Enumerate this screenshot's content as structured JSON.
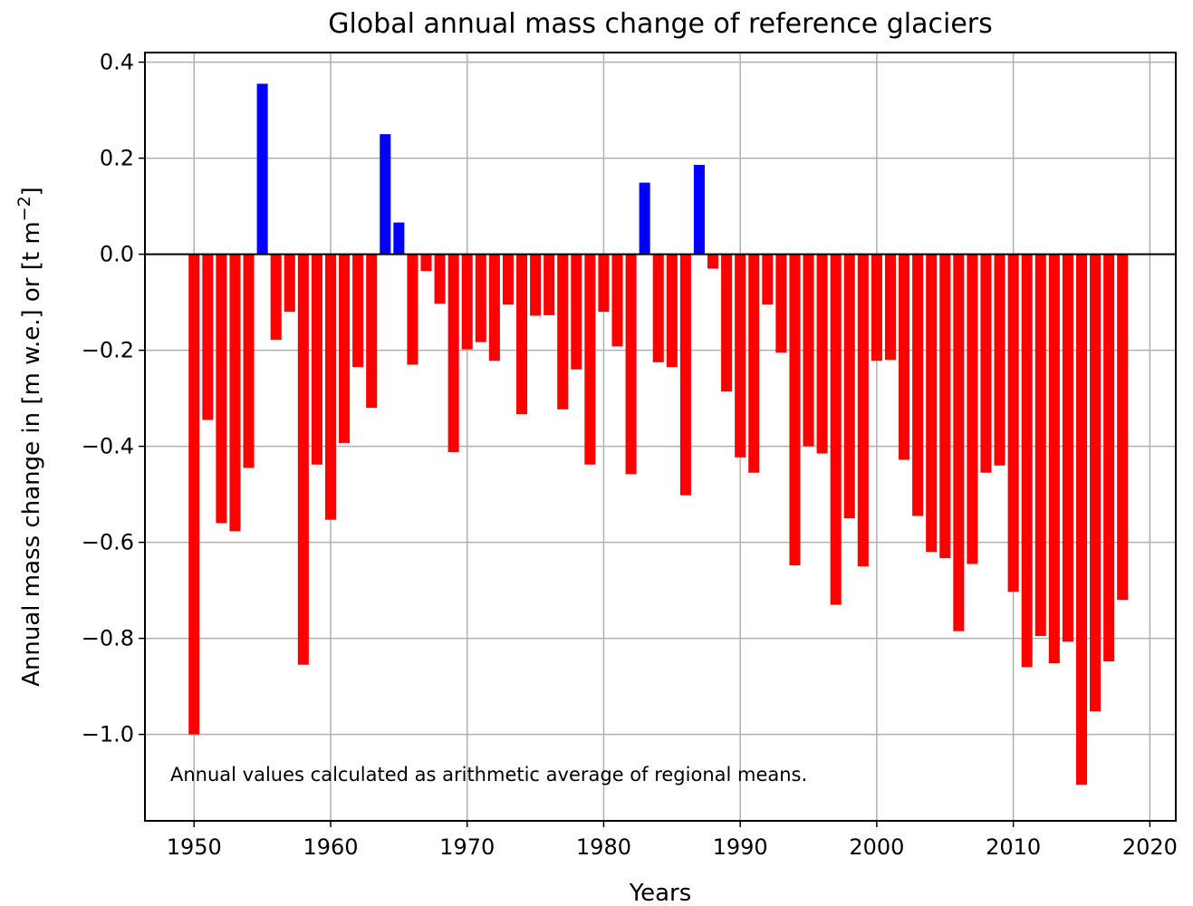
{
  "chart_data": {
    "type": "bar",
    "title": "Global annual mass change of reference glaciers",
    "xlabel": "Years",
    "ylabel": "Annual mass change in [m w.e.] or [t m",
    "ylabel_superscript": "−2",
    "ylabel_suffix": "]",
    "annotation": "Annual values calculated as arithmetic average of regional means.",
    "xlim": [
      1946.4,
      2021.9
    ],
    "ylim": [
      -1.18,
      0.42
    ],
    "xticks": [
      1950,
      1960,
      1970,
      1980,
      1990,
      2000,
      2010,
      2020
    ],
    "xtick_labels": [
      "1950",
      "1960",
      "1970",
      "1980",
      "1990",
      "2000",
      "2010",
      "2020"
    ],
    "yticks": [
      0.4,
      0.2,
      0.0,
      -0.2,
      -0.4,
      -0.6,
      -0.8,
      -1.0
    ],
    "ytick_labels": [
      "0.4",
      "0.2",
      "0.0",
      "−0.2",
      "−0.4",
      "−0.6",
      "−0.8",
      "−1.0"
    ],
    "grid": true,
    "positive_color": "#0000ff",
    "negative_color": "#ff0000",
    "x": [
      1950,
      1951,
      1952,
      1953,
      1954,
      1955,
      1956,
      1957,
      1958,
      1959,
      1960,
      1961,
      1962,
      1963,
      1964,
      1965,
      1966,
      1967,
      1968,
      1969,
      1970,
      1971,
      1972,
      1973,
      1974,
      1975,
      1976,
      1977,
      1978,
      1979,
      1980,
      1981,
      1982,
      1983,
      1984,
      1985,
      1986,
      1987,
      1988,
      1989,
      1990,
      1991,
      1992,
      1993,
      1994,
      1995,
      1996,
      1997,
      1998,
      1999,
      2000,
      2001,
      2002,
      2003,
      2004,
      2005,
      2006,
      2007,
      2008,
      2009,
      2010,
      2011,
      2012,
      2013,
      2014,
      2015,
      2016,
      2017,
      2018
    ],
    "values": [
      -1.0,
      -0.345,
      -0.56,
      -0.577,
      -0.445,
      0.355,
      -0.178,
      -0.12,
      -0.855,
      -0.438,
      -0.553,
      -0.393,
      -0.235,
      -0.32,
      0.25,
      0.066,
      -0.23,
      -0.035,
      -0.103,
      -0.412,
      -0.198,
      -0.183,
      -0.222,
      -0.105,
      -0.333,
      -0.128,
      -0.127,
      -0.323,
      -0.24,
      -0.438,
      -0.12,
      -0.192,
      -0.458,
      0.149,
      -0.225,
      -0.235,
      -0.502,
      0.186,
      -0.03,
      -0.286,
      -0.423,
      -0.455,
      -0.105,
      -0.205,
      -0.648,
      -0.4,
      -0.415,
      -0.73,
      -0.55,
      -0.65,
      -0.222,
      -0.22,
      -0.428,
      -0.545,
      -0.62,
      -0.633,
      -0.785,
      -0.645,
      -0.455,
      -0.44,
      -0.703,
      -0.86,
      -0.795,
      -0.852,
      -0.807,
      -1.105,
      -0.952,
      -0.848,
      -0.72
    ]
  }
}
